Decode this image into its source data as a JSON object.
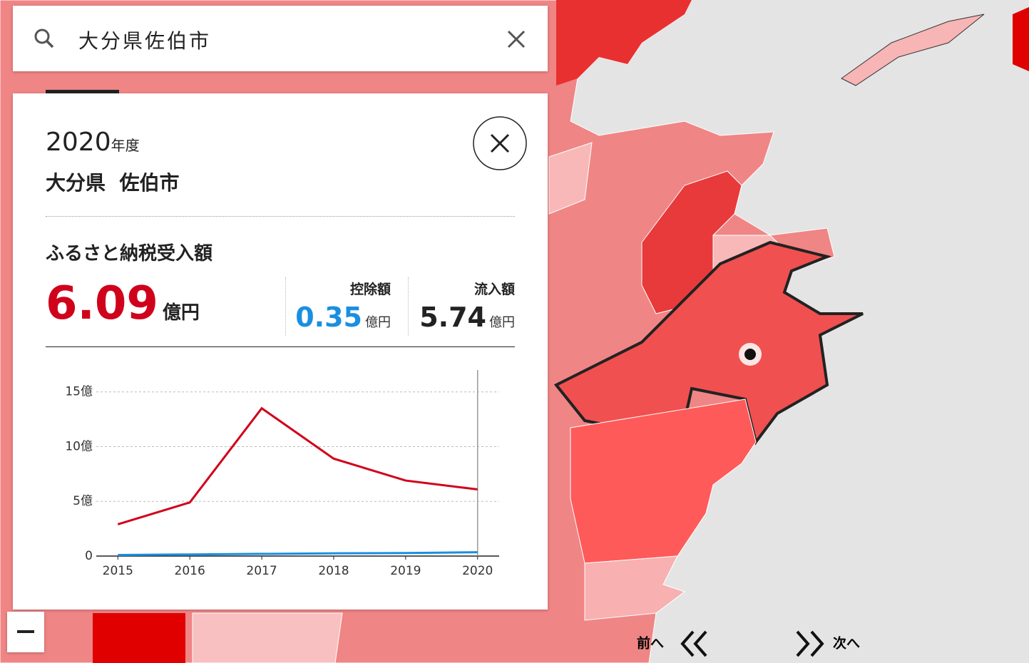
{
  "search": {
    "query": "大分県佐伯市"
  },
  "panel": {
    "year": "2020",
    "year_suffix": "年度",
    "prefecture": "大分県",
    "city": "佐伯市",
    "metric_title": "ふるさと納税受入額",
    "total": {
      "value": "6.09",
      "unit": "億円"
    },
    "deduction": {
      "label": "控除額",
      "value": "0.35",
      "unit": "億円"
    },
    "inflow": {
      "label": "流入額",
      "value": "5.74",
      "unit": "億円"
    }
  },
  "chart_data": {
    "type": "line",
    "x": [
      2015,
      2016,
      2017,
      2018,
      2019,
      2020
    ],
    "series": [
      {
        "color": "#d0021b",
        "values": [
          2.9,
          4.9,
          13.5,
          8.9,
          6.9,
          6.09
        ]
      },
      {
        "color": "#1a8fe0",
        "values": [
          0.1,
          0.15,
          0.2,
          0.25,
          0.28,
          0.35
        ]
      }
    ],
    "xlim": [
      2014.7,
      2020.3
    ],
    "xticks": [
      2015,
      2016,
      2017,
      2018,
      2019,
      2020
    ],
    "ylim": [
      0,
      17
    ],
    "yticks": [
      0,
      {
        "value": 5,
        "label": "5億"
      },
      {
        "value": 10,
        "label": "10億"
      },
      {
        "value": 15,
        "label": "15億"
      }
    ],
    "grid": true
  },
  "nav": {
    "prev": "前へ",
    "next": "次へ"
  }
}
